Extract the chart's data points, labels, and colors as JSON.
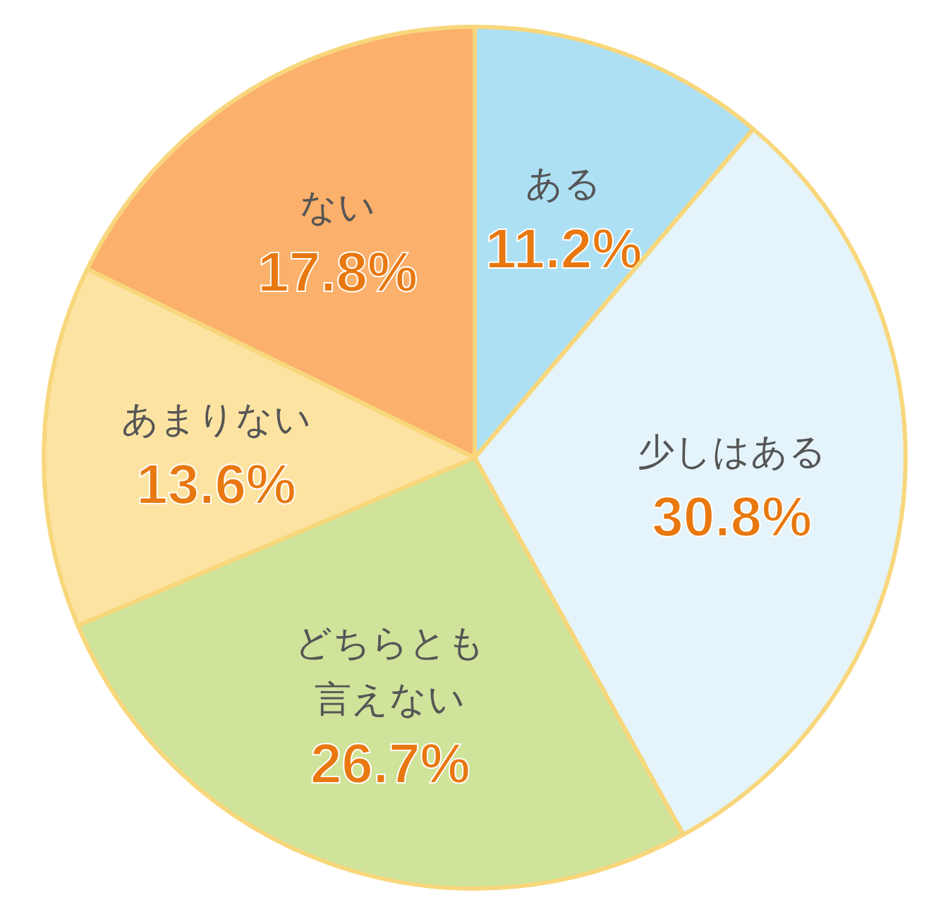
{
  "chart_data": {
    "type": "pie",
    "categories": [
      "ある",
      "少しはある",
      "どちらとも言えない",
      "あまりない",
      "ない"
    ],
    "values": [
      11.2,
      30.8,
      26.7,
      13.6,
      17.8
    ],
    "value_labels": [
      "11.2%",
      "30.8%",
      "26.7%",
      "13.6%",
      "17.8%"
    ],
    "colors": [
      "#aee0f4",
      "#e4f4fa",
      "#cfe39a",
      "#fde3a2",
      "#fbb06b"
    ]
  }
}
